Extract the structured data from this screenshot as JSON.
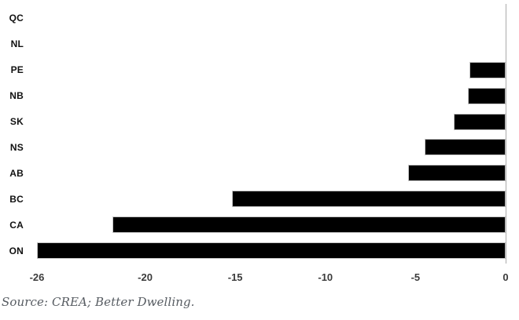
{
  "chart_data": {
    "type": "bar",
    "orientation": "horizontal",
    "title": "",
    "xlabel": "",
    "ylabel": "",
    "categories": [
      "QC",
      "NL",
      "PE",
      "NB",
      "SK",
      "NS",
      "AB",
      "BC",
      "CA",
      "ON"
    ],
    "values": [
      0,
      0,
      -2.0,
      -2.1,
      -2.9,
      -4.5,
      -5.4,
      -15.2,
      -21.8,
      -26.0
    ],
    "xlim": [
      -26,
      0
    ],
    "x_ticks": [
      -26,
      -20,
      -15,
      -10,
      -5,
      0
    ],
    "x_tick_labels": [
      "-26",
      "-20",
      "-15",
      "-10",
      "-5",
      "0"
    ],
    "grid": false,
    "legend": null,
    "bar_color": "#000000",
    "bar_border_color": "#c4c4c4",
    "axis_line_color": "#ababab",
    "tick_label_color": "#3b3b3b",
    "category_label_color": "#111111"
  },
  "source_note": "Source: CREA; Better Dwelling."
}
